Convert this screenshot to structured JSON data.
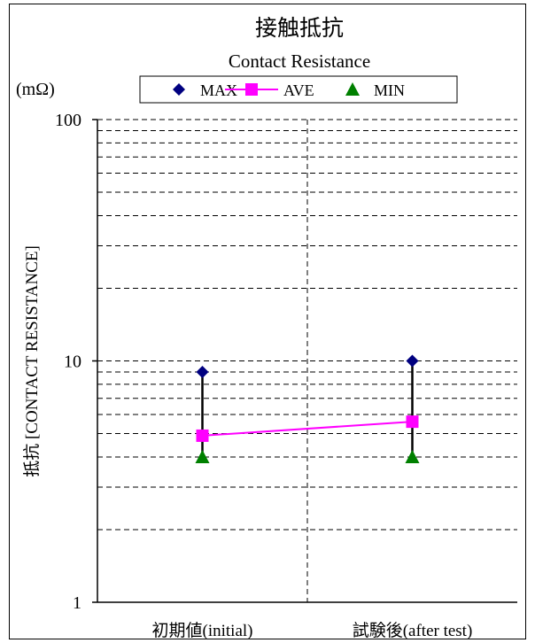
{
  "chart_data": {
    "type": "line",
    "title": "接触抵抗",
    "subtitle": "Contact Resistance",
    "unit": "(mΩ)",
    "ylabel": "抵抗 [CONTACT RESISTANCE]",
    "yscale": "log",
    "ylim": [
      1,
      100
    ],
    "yticks": [
      "1",
      "10",
      "100"
    ],
    "categories": [
      "初期値(initial)",
      "試験後(after test)"
    ],
    "series": [
      {
        "name": "MAX",
        "values": [
          9.0,
          10.0
        ],
        "color": "#000080",
        "marker": "diamond"
      },
      {
        "name": "AVE",
        "values": [
          4.9,
          5.6
        ],
        "color": "#ff00ff",
        "marker": "square"
      },
      {
        "name": "MIN",
        "values": [
          4.0,
          4.0
        ],
        "color": "#008000",
        "marker": "triangle"
      }
    ],
    "grid": {
      "horizontal_minor": true,
      "style": "dashed"
    },
    "legend": "top"
  }
}
